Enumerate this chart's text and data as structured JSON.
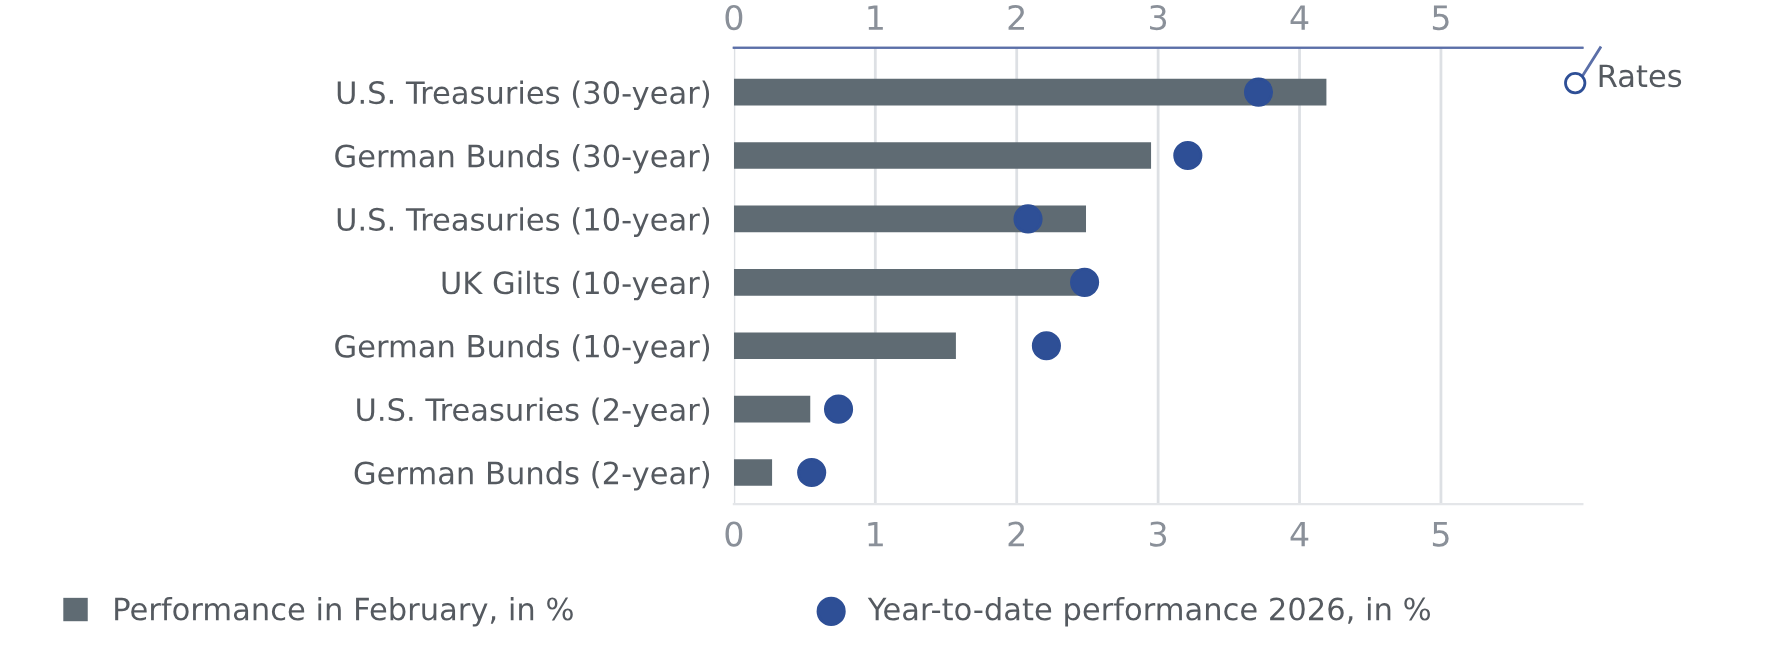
{
  "chart_data": {
    "type": "bar",
    "orientation": "horizontal",
    "categories": [
      "U.S. Treasuries (30-year)",
      "German Bunds (30-year)",
      "U.S. Treasuries (10-year)",
      "UK Gilts (10-year)",
      "German Bunds (10-year)",
      "U.S. Treasuries (2-year)",
      "German Bunds (2-year)"
    ],
    "series": [
      {
        "name": "Performance in February, in %",
        "color": "#5f6b73",
        "values": [
          4.19,
          2.95,
          2.49,
          2.44,
          1.57,
          0.54,
          0.27
        ]
      },
      {
        "name": "Year-to-date performance 2026, in %",
        "type": "scatter",
        "marker": "circle",
        "color": "#2e4f96",
        "values": [
          3.71,
          3.21,
          2.08,
          2.48,
          2.21,
          0.74,
          0.55
        ]
      }
    ],
    "xlim": [
      0,
      6
    ],
    "xticks": [
      0,
      1,
      2,
      3,
      4,
      5
    ],
    "x2lim": [
      0,
      6
    ],
    "x2ticks": [
      0,
      1,
      2,
      3,
      4,
      5
    ],
    "grid": "x",
    "legend": "bottom",
    "annotations": [
      "Rates"
    ]
  }
}
